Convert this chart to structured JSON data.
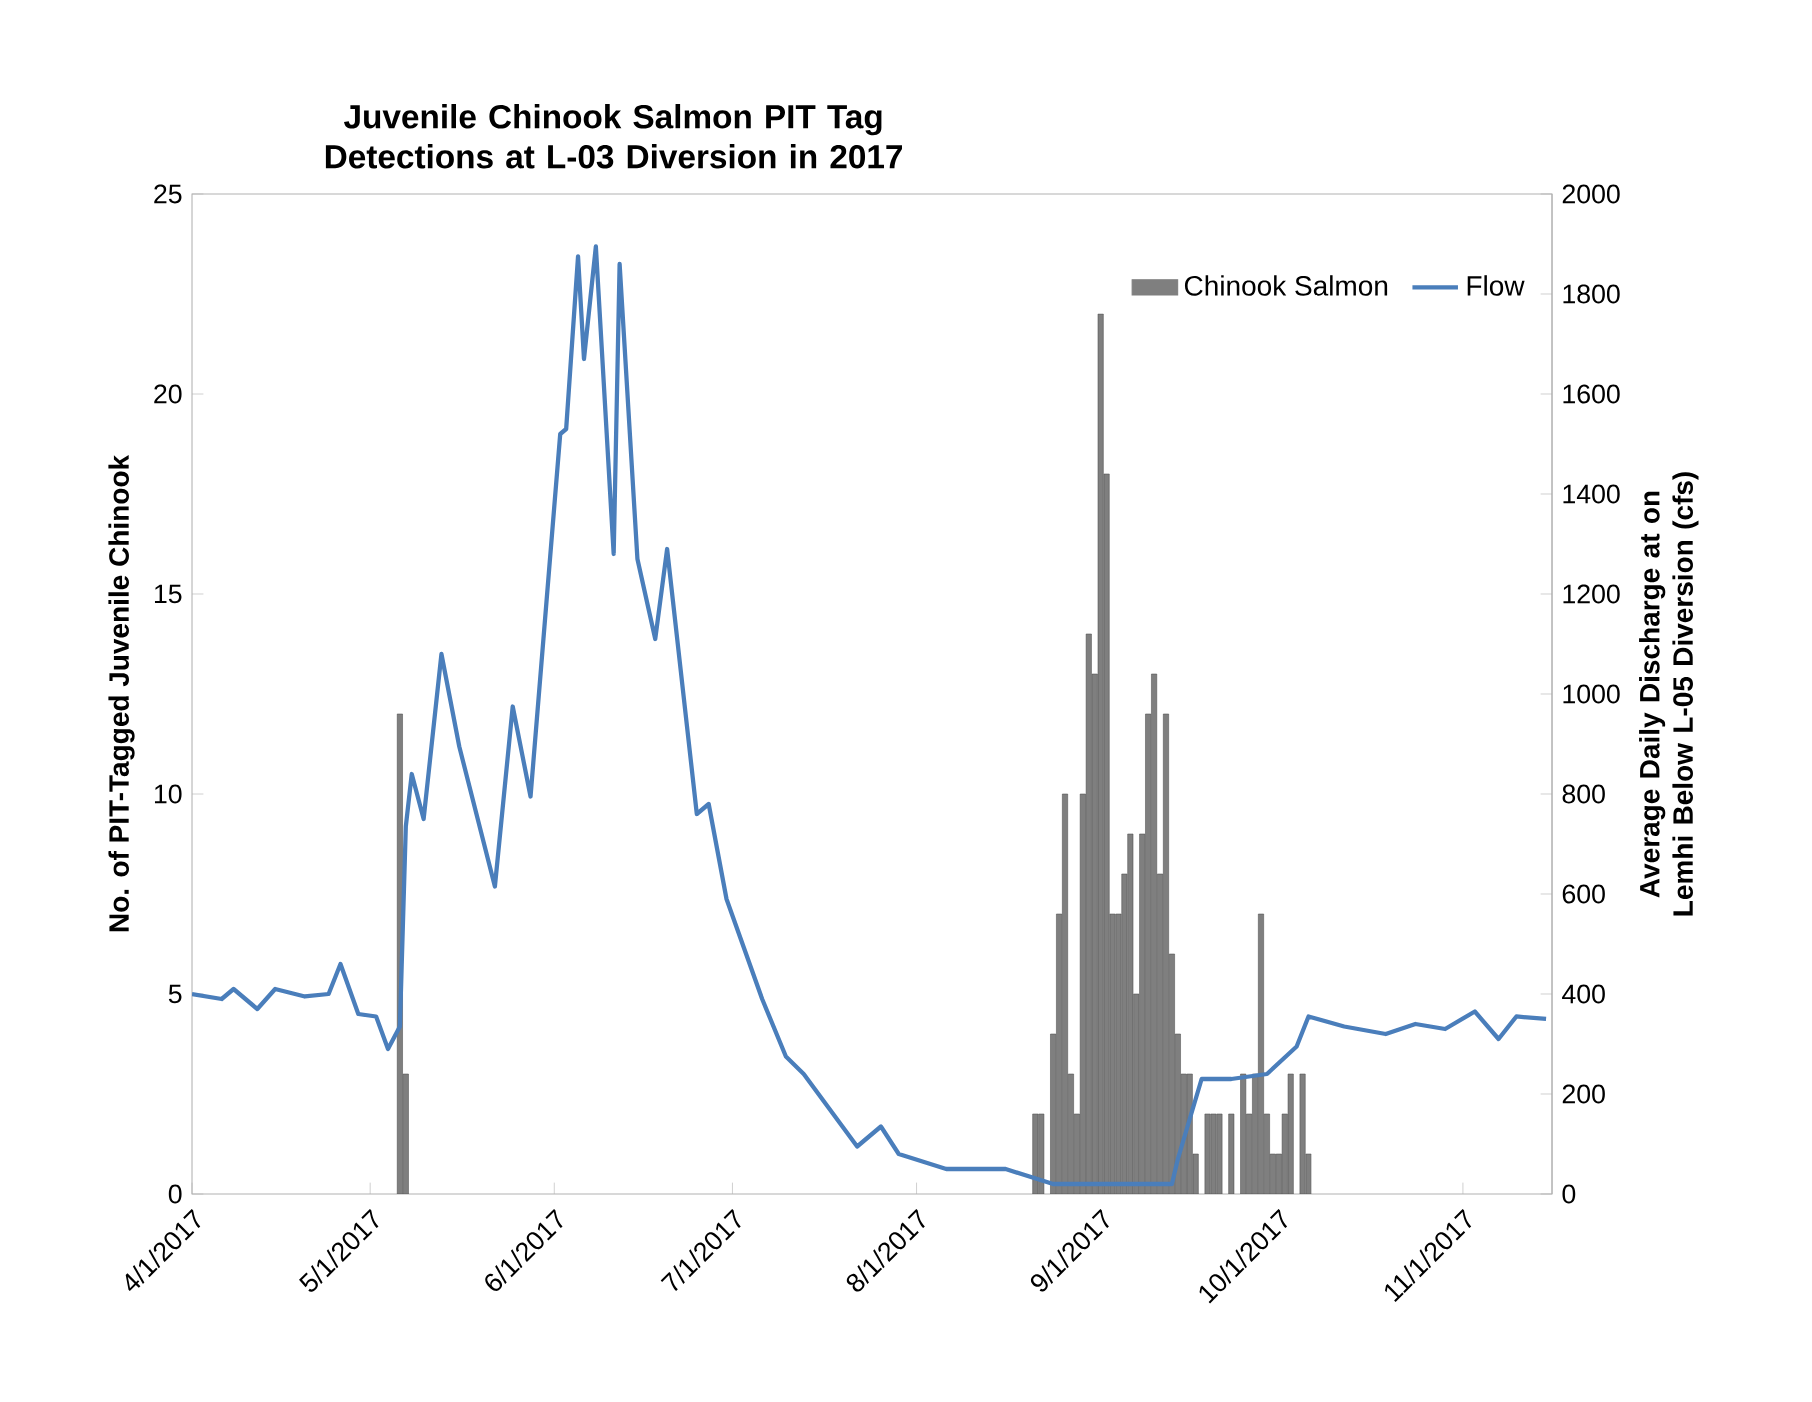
{
  "chart_data": {
    "type": "bar",
    "title": "Juvenile Chinook Salmon PIT Tag Detections at L-03 Diversion in 2017",
    "ylabel": "No. of PIT-Tagged Juvenile Chinook",
    "y2label": "Average Daily Discharge at on Lemhi Below L-05 Diversion (cfs)",
    "xlim": [
      "2017-04-01",
      "2017-11-16"
    ],
    "xticks": [
      {
        "value": "2017-04-01",
        "label": "4/1/2017"
      },
      {
        "value": "2017-05-01",
        "label": "5/1/2017"
      },
      {
        "value": "2017-06-01",
        "label": "6/1/2017"
      },
      {
        "value": "2017-07-01",
        "label": "7/1/2017"
      },
      {
        "value": "2017-08-01",
        "label": "8/1/2017"
      },
      {
        "value": "2017-09-01",
        "label": "9/1/2017"
      },
      {
        "value": "2017-10-01",
        "label": "10/1/2017"
      },
      {
        "value": "2017-11-01",
        "label": "11/1/2017"
      }
    ],
    "ylim": [
      0,
      25
    ],
    "yticks": [
      0,
      5,
      10,
      15,
      20,
      25
    ],
    "y2lim": [
      0,
      2000
    ],
    "y2ticks": [
      0,
      200,
      400,
      600,
      800,
      1000,
      1200,
      1400,
      1600,
      1800,
      2000
    ],
    "legend": "top right",
    "series": [
      {
        "name": "Chinook Salmon",
        "color": "#7f7f7f",
        "x": [
          "2017-05-06",
          "2017-05-07",
          "2017-08-21",
          "2017-08-22",
          "2017-08-24",
          "2017-08-25",
          "2017-08-26",
          "2017-08-27",
          "2017-08-28",
          "2017-08-29",
          "2017-08-30",
          "2017-08-31",
          "2017-09-01",
          "2017-09-02",
          "2017-09-03",
          "2017-09-04",
          "2017-09-05",
          "2017-09-06",
          "2017-09-07",
          "2017-09-08",
          "2017-09-09",
          "2017-09-10",
          "2017-09-11",
          "2017-09-12",
          "2017-09-13",
          "2017-09-14",
          "2017-09-15",
          "2017-09-16",
          "2017-09-17",
          "2017-09-19",
          "2017-09-20",
          "2017-09-21",
          "2017-09-23",
          "2017-09-25",
          "2017-09-26",
          "2017-09-27",
          "2017-09-28",
          "2017-09-29",
          "2017-09-30",
          "2017-10-01",
          "2017-10-02",
          "2017-10-03",
          "2017-10-05",
          "2017-10-06"
        ],
        "values": [
          12,
          3,
          2,
          2,
          4,
          7,
          10,
          3,
          2,
          10,
          14,
          13,
          22,
          18,
          7,
          7,
          8,
          9,
          5,
          9,
          12,
          13,
          8,
          12,
          6,
          4,
          3,
          3,
          1,
          2,
          2,
          2,
          2,
          3,
          2,
          3,
          7,
          2,
          1,
          1,
          2,
          3,
          3,
          1
        ]
      },
      {
        "name": "Flow",
        "type": "line",
        "axis": "y2",
        "color": "#4a7ebb",
        "x": [
          "2017-04-01",
          "2017-04-06",
          "2017-04-08",
          "2017-04-12",
          "2017-04-15",
          "2017-04-20",
          "2017-04-24",
          "2017-04-26",
          "2017-04-29",
          "2017-05-02",
          "2017-05-04",
          "2017-05-06",
          "2017-05-07",
          "2017-05-08",
          "2017-05-10",
          "2017-05-13",
          "2017-05-16",
          "2017-05-22",
          "2017-05-25",
          "2017-05-28",
          "2017-06-02",
          "2017-06-03",
          "2017-06-05",
          "2017-06-06",
          "2017-06-08",
          "2017-06-11",
          "2017-06-12",
          "2017-06-15",
          "2017-06-18",
          "2017-06-20",
          "2017-06-25",
          "2017-06-27",
          "2017-06-30",
          "2017-07-06",
          "2017-07-10",
          "2017-07-13",
          "2017-07-22",
          "2017-07-26",
          "2017-07-29",
          "2017-08-06",
          "2017-08-16",
          "2017-08-24",
          "2017-09-13",
          "2017-09-14",
          "2017-09-18",
          "2017-09-23",
          "2017-09-29",
          "2017-10-04",
          "2017-10-06",
          "2017-10-12",
          "2017-10-19",
          "2017-10-24",
          "2017-10-29",
          "2017-11-03",
          "2017-11-07",
          "2017-11-10",
          "2017-11-15"
        ],
        "values": [
          400,
          390,
          410,
          370,
          410,
          395,
          400,
          460,
          360,
          355,
          290,
          335,
          735,
          840,
          750,
          1080,
          895,
          615,
          975,
          795,
          1520,
          1530,
          1875,
          1670,
          1895,
          1280,
          1860,
          1270,
          1110,
          1290,
          760,
          780,
          590,
          390,
          275,
          240,
          95,
          135,
          80,
          50,
          50,
          20,
          20,
          70,
          230,
          230,
          240,
          295,
          355,
          335,
          320,
          340,
          330,
          365,
          310,
          355,
          350
        ]
      }
    ]
  }
}
